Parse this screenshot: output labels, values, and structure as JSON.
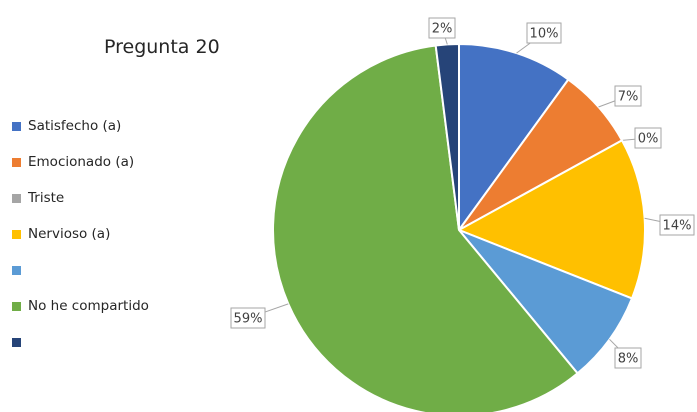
{
  "chart_data": {
    "type": "pie",
    "title": "Pregunta 20",
    "categories": [
      "Satisfecho (a)",
      "Emocionado (a)",
      "Triste",
      "Nervioso (a)",
      "",
      "No he compartido",
      ""
    ],
    "values": [
      10,
      7,
      0,
      14,
      8,
      59,
      2
    ],
    "data_labels": [
      "10%",
      "7%",
      "0%",
      "14%",
      "8%",
      "59%",
      "2%"
    ],
    "colors": [
      "#4472C4",
      "#ED7D31",
      "#A5A5A5",
      "#FFC000",
      "#5B9BD5",
      "#70AD47",
      "#264478"
    ],
    "legend_position": "left",
    "start_angle_deg": 0,
    "direction": "clockwise"
  }
}
